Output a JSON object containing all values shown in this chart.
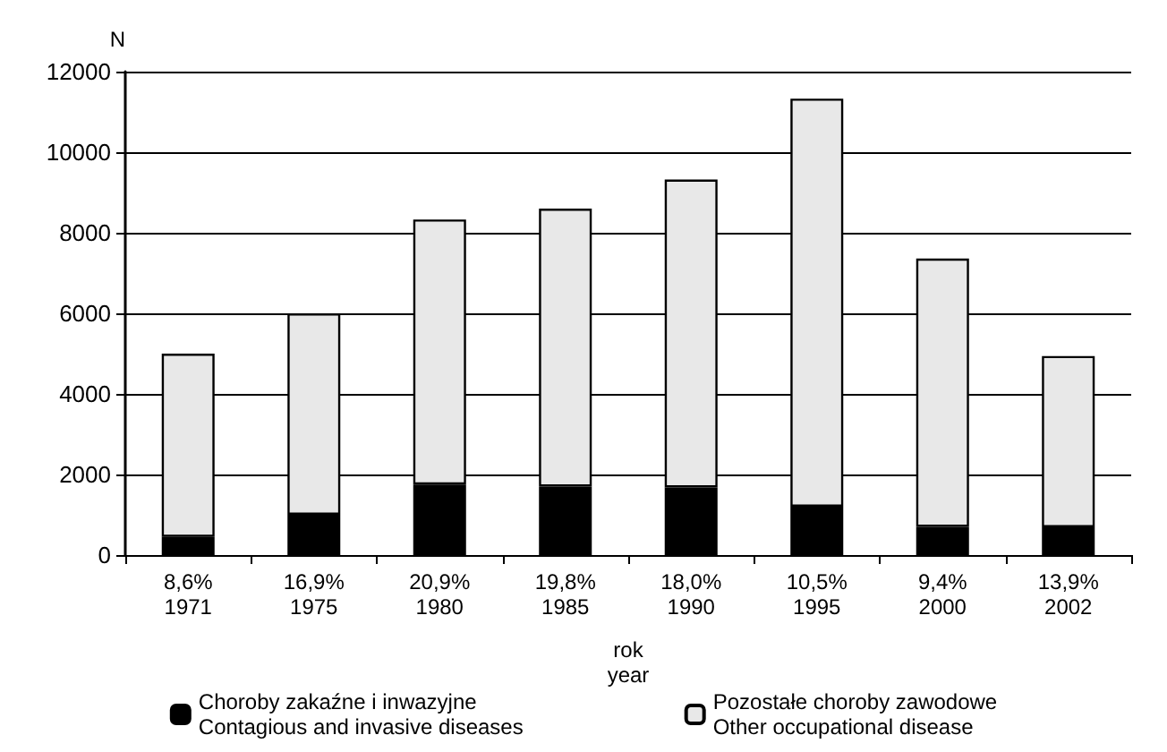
{
  "chart_data": {
    "type": "bar",
    "stacked": true,
    "ylabel": "N",
    "xlabel": "rok\nyear",
    "categories": [
      "8,6%\n1971",
      "16,9%\n1975",
      "20,9%\n1980",
      "19,8%\n1985",
      "18,0%\n1990",
      "10,5%\n1995",
      "9,4%\n2000",
      "13,9%\n2002"
    ],
    "series": [
      {
        "name": "Choroby zakaźne i inwazyjne\nContagious and invasive diseases",
        "color": "#000000",
        "values": [
          450,
          1000,
          1750,
          1700,
          1680,
          1200,
          700,
          690
        ]
      },
      {
        "name": "Pozostałe choroby zawodowe\nOther occupational disease",
        "color": "#e8e8e8",
        "values": [
          4550,
          5000,
          6580,
          6900,
          7640,
          10130,
          6660,
          4250
        ]
      }
    ],
    "ylim": [
      0,
      12000
    ],
    "yticks": [
      0,
      2000,
      4000,
      6000,
      8000,
      10000,
      12000
    ],
    "grid": "y",
    "legend": "bottom"
  }
}
